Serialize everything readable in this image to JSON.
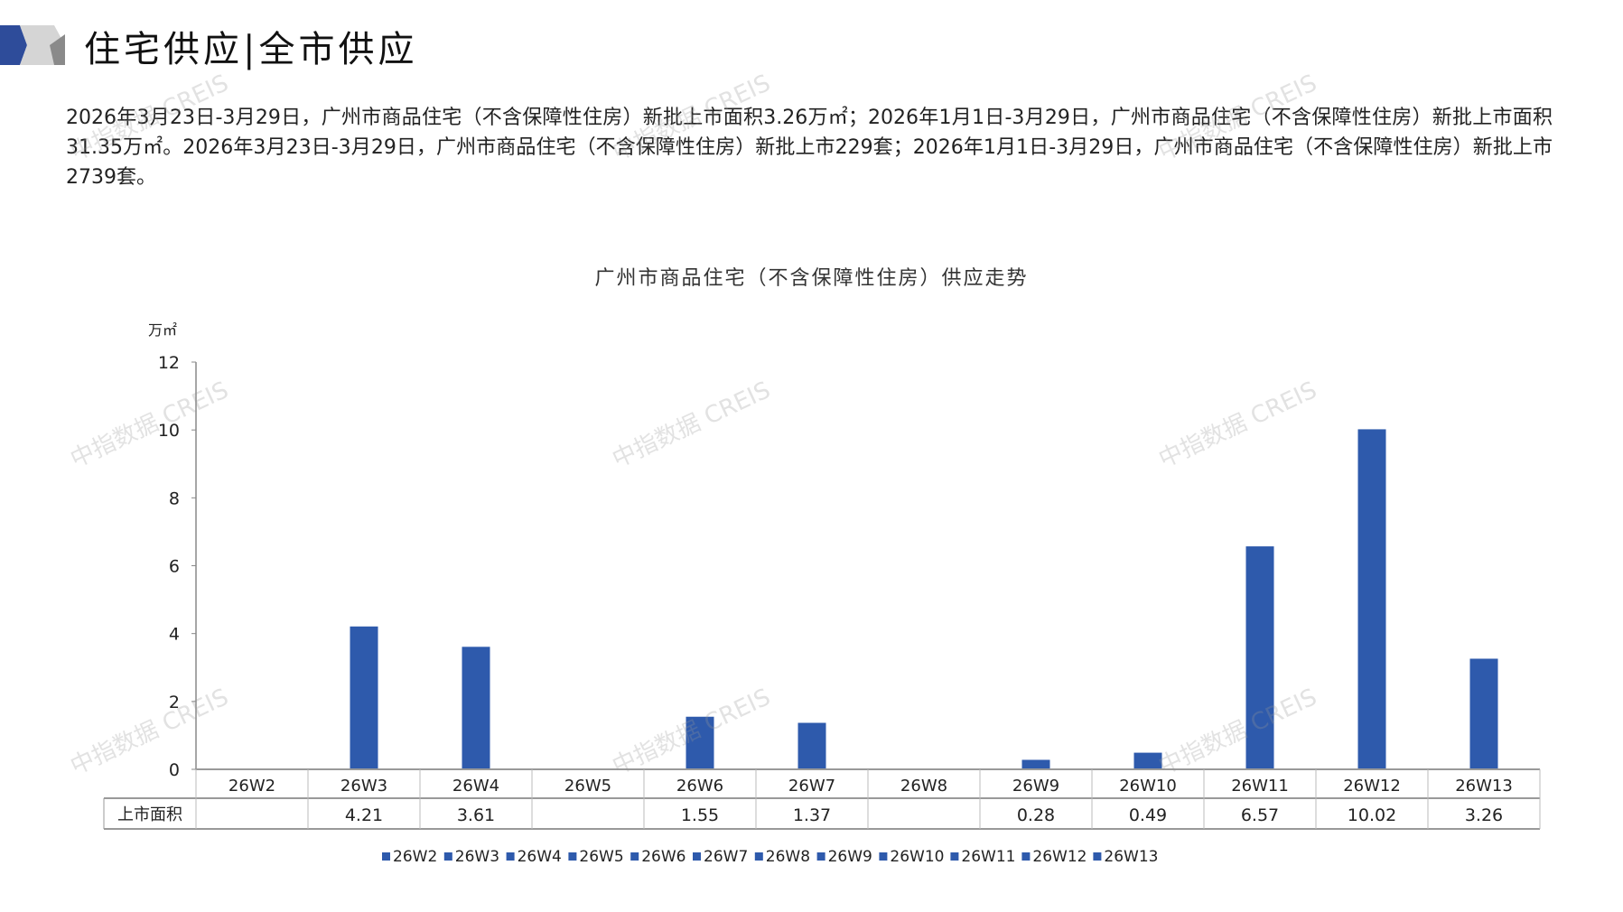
{
  "header": {
    "title": "住宅供应|全市供应"
  },
  "paragraph": "2026年3月23日-3月29日，广州市商品住宅（不含保障性住房）新批上市面积3.26万㎡；2026年1月1日-3月29日，广州市商品住宅（不含保障性住房）新批上市面积31.35万㎡。2026年3月23日-3月29日，广州市商品住宅（不含保障性住房）新批上市229套；2026年1月1日-3月29日，广州市商品住宅（不含保障性住房）新批上市2739套。",
  "watermark": "中指数据 CREIS",
  "colors": {
    "bar": "#2E5AAC",
    "accent": "#2E4C9A"
  },
  "chart_data": {
    "type": "bar",
    "title": "广州市商品住宅（不含保障性住房）供应走势",
    "ylabel": "万㎡",
    "ylim": [
      0,
      12
    ],
    "yticks": [
      0,
      2,
      4,
      6,
      8,
      10,
      12
    ],
    "grid": false,
    "legend": "bottom",
    "categories": [
      "26W2",
      "26W3",
      "26W4",
      "26W5",
      "26W6",
      "26W7",
      "26W8",
      "26W9",
      "26W10",
      "26W11",
      "26W12",
      "26W13"
    ],
    "series": [
      {
        "name": "上市面积",
        "values": [
          null,
          4.21,
          3.61,
          null,
          1.55,
          1.37,
          null,
          0.28,
          0.49,
          6.57,
          10.02,
          3.26
        ],
        "labels": [
          "",
          "4.21",
          "3.61",
          "",
          "1.55",
          "1.37",
          "",
          "0.28",
          "0.49",
          "6.57",
          "10.02",
          "3.26"
        ]
      }
    ]
  }
}
